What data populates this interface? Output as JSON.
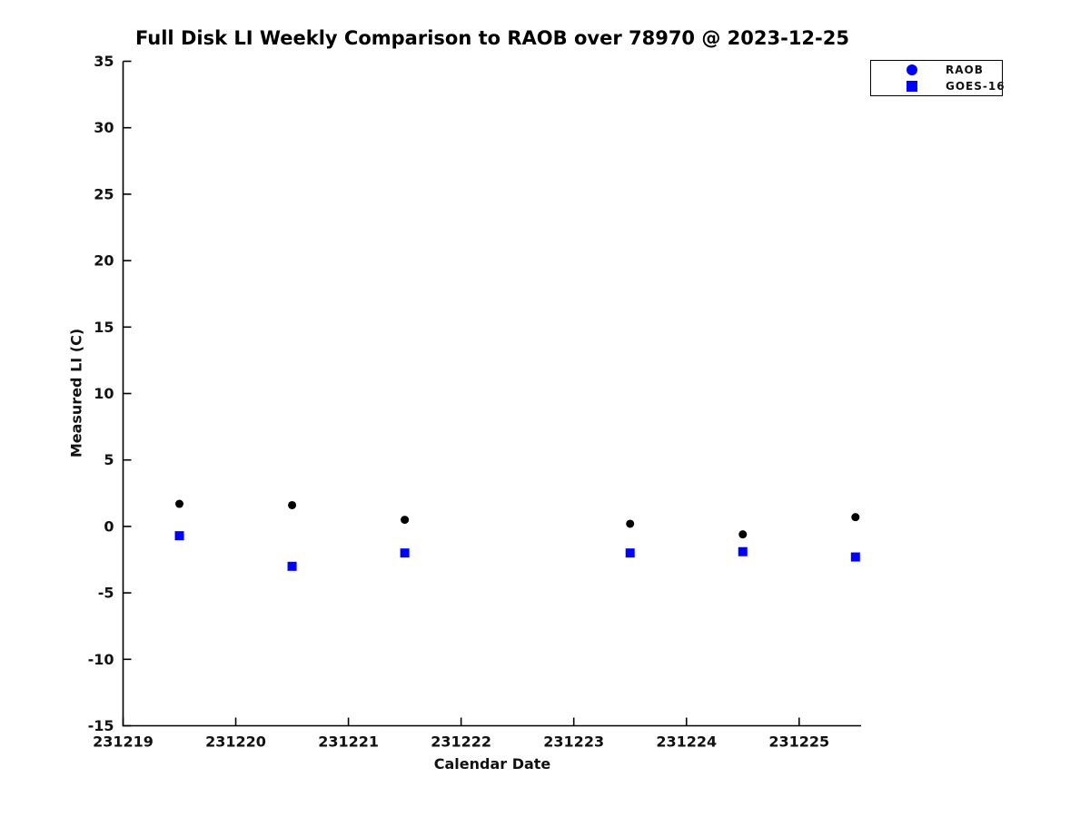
{
  "chart_data": {
    "type": "scatter",
    "title": "Full Disk LI Weekly Comparison to RAOB over 78970 @ 2023-12-25",
    "xlabel": "Calendar Date",
    "ylabel": "Measured LI (C)",
    "xlim": [
      231219,
      231225.55
    ],
    "ylim": [
      -15,
      35
    ],
    "x_ticks": [
      231219,
      231220,
      231221,
      231222,
      231223,
      231224,
      231225
    ],
    "y_ticks": [
      -15,
      -10,
      -5,
      0,
      5,
      10,
      15,
      20,
      25,
      30,
      35
    ],
    "grid": false,
    "legend_position": "top-right",
    "series": [
      {
        "name": "RAOB",
        "marker": "circle",
        "color": "#000000",
        "legend_color": "#0000ff",
        "x": [
          231219.5,
          231220.5,
          231221.5,
          231223.5,
          231224.5,
          231225.5
        ],
        "y": [
          1.7,
          1.6,
          0.5,
          0.2,
          -0.6,
          0.7
        ]
      },
      {
        "name": "GOES-16",
        "marker": "square",
        "color": "#0000ff",
        "legend_color": "#0000ff",
        "x": [
          231219.5,
          231220.5,
          231221.5,
          231223.5,
          231224.5,
          231225.5
        ],
        "y": [
          -0.7,
          -3.0,
          -2.0,
          -2.0,
          -1.9,
          -2.3
        ]
      }
    ]
  }
}
